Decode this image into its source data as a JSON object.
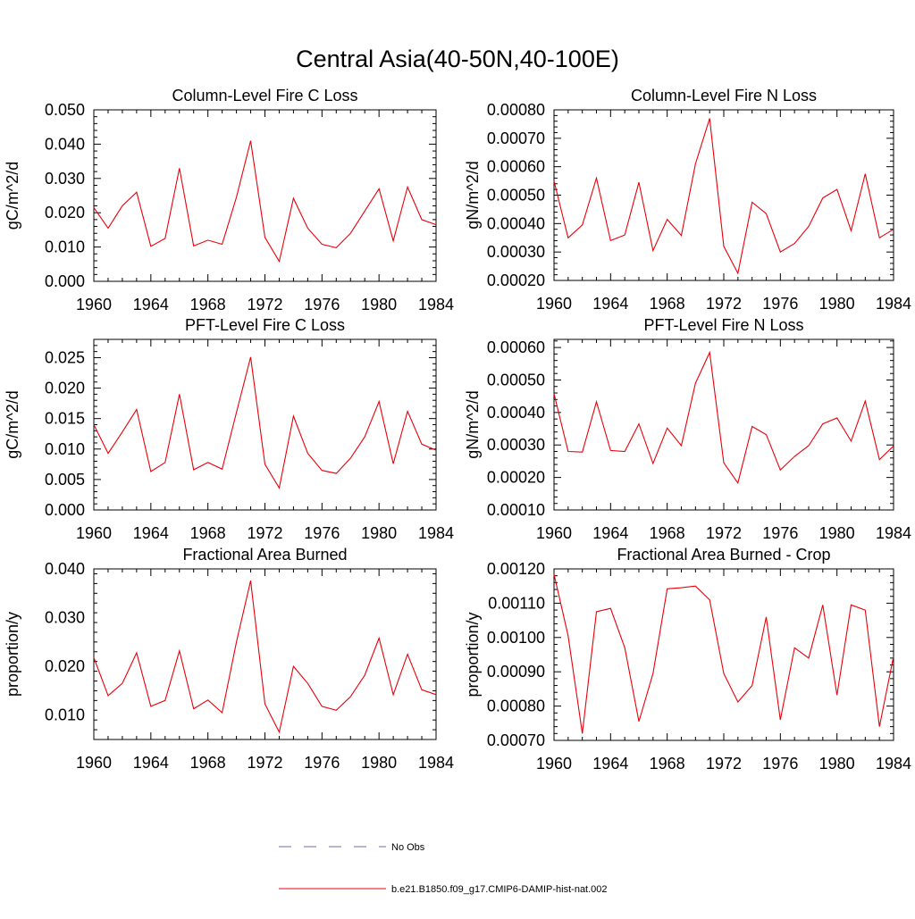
{
  "title": "Central Asia(40-50N,40-100E)",
  "colors": {
    "model_line": "#e8000b",
    "obs_line": "#6b6bb5",
    "axis": "#000000"
  },
  "x_ticks": [
    "1960",
    "1964",
    "1968",
    "1972",
    "1976",
    "1980",
    "1984"
  ],
  "legend": {
    "obs_label": "No Obs",
    "model_label": "b.e21.B1850.f09_g17.CMIP6-DAMIP-hist-nat.002"
  },
  "chart_data": [
    {
      "type": "line",
      "title": "Column-Level Fire C Loss",
      "ylabel": "gC/m^2/d",
      "xlim": [
        1960,
        1984
      ],
      "ylim": [
        0.0,
        0.05
      ],
      "yticks": [
        "0.000",
        "0.010",
        "0.020",
        "0.030",
        "0.040",
        "0.050"
      ],
      "x": [
        1960,
        1961,
        1962,
        1963,
        1964,
        1965,
        1966,
        1967,
        1968,
        1969,
        1970,
        1971,
        1972,
        1973,
        1974,
        1975,
        1976,
        1977,
        1978,
        1979,
        1980,
        1981,
        1982,
        1983,
        1984
      ],
      "values": [
        0.0215,
        0.0155,
        0.022,
        0.026,
        0.0102,
        0.0125,
        0.033,
        0.0103,
        0.012,
        0.0108,
        0.0245,
        0.041,
        0.0128,
        0.0058,
        0.0242,
        0.0155,
        0.0108,
        0.0098,
        0.014,
        0.0205,
        0.027,
        0.0118,
        0.0275,
        0.018,
        0.0165
      ]
    },
    {
      "type": "line",
      "title": "Column-Level Fire N Loss",
      "ylabel": "gN/m^2/d",
      "xlim": [
        1960,
        1984
      ],
      "ylim": [
        0.0002,
        0.0008
      ],
      "yticks": [
        "0.00020",
        "0.00030",
        "0.00040",
        "0.00050",
        "0.00060",
        "0.00070",
        "0.00080"
      ],
      "x": [
        1960,
        1961,
        1962,
        1963,
        1964,
        1965,
        1966,
        1967,
        1968,
        1969,
        1970,
        1971,
        1972,
        1973,
        1974,
        1975,
        1976,
        1977,
        1978,
        1979,
        1980,
        1981,
        1982,
        1983,
        1984
      ],
      "values": [
        0.00055,
        0.00035,
        0.000395,
        0.00056,
        0.00034,
        0.00036,
        0.000545,
        0.000305,
        0.000415,
        0.000358,
        0.00061,
        0.00077,
        0.00032,
        0.000225,
        0.000475,
        0.000435,
        0.0003,
        0.00033,
        0.00039,
        0.00049,
        0.00052,
        0.000375,
        0.000575,
        0.00035,
        0.00038
      ]
    },
    {
      "type": "line",
      "title": "PFT-Level Fire C Loss",
      "ylabel": "gC/m^2/d",
      "xlim": [
        1960,
        1984
      ],
      "ylim": [
        0.0,
        0.028
      ],
      "yticks": [
        "0.000",
        "0.005",
        "0.010",
        "0.015",
        "0.020",
        "0.025"
      ],
      "x": [
        1960,
        1961,
        1962,
        1963,
        1964,
        1965,
        1966,
        1967,
        1968,
        1969,
        1970,
        1971,
        1972,
        1973,
        1974,
        1975,
        1976,
        1977,
        1978,
        1979,
        1980,
        1981,
        1982,
        1983,
        1984
      ],
      "values": [
        0.014,
        0.0093,
        0.0128,
        0.0165,
        0.0063,
        0.0078,
        0.019,
        0.0066,
        0.0078,
        0.0067,
        0.016,
        0.0251,
        0.0075,
        0.0036,
        0.0154,
        0.0093,
        0.0065,
        0.006,
        0.0085,
        0.012,
        0.0178,
        0.0076,
        0.0162,
        0.0108,
        0.0098
      ]
    },
    {
      "type": "line",
      "title": "PFT-Level Fire N Loss",
      "ylabel": "gN/m^2/d",
      "xlim": [
        1960,
        1984
      ],
      "ylim": [
        0.0001,
        0.000625
      ],
      "yticks": [
        "0.00010",
        "0.00020",
        "0.00030",
        "0.00040",
        "0.00050",
        "0.00060"
      ],
      "x": [
        1960,
        1961,
        1962,
        1963,
        1964,
        1965,
        1966,
        1967,
        1968,
        1969,
        1970,
        1971,
        1972,
        1973,
        1974,
        1975,
        1976,
        1977,
        1978,
        1979,
        1980,
        1981,
        1982,
        1983,
        1984
      ],
      "values": [
        0.000458,
        0.00028,
        0.000278,
        0.000433,
        0.000283,
        0.00028,
        0.000365,
        0.000243,
        0.000352,
        0.000298,
        0.00049,
        0.000585,
        0.000245,
        0.000183,
        0.000357,
        0.000332,
        0.000223,
        0.000265,
        0.000298,
        0.000365,
        0.000383,
        0.000312,
        0.000435,
        0.000255,
        0.000297
      ]
    },
    {
      "type": "line",
      "title": "Fractional Area Burned",
      "ylabel": "proportion/y",
      "xlim": [
        1960,
        1984
      ],
      "ylim": [
        0.005,
        0.04
      ],
      "yticks": [
        "",
        "0.010",
        "0.020",
        "0.030",
        "0.040"
      ],
      "ytick_values": [
        0.005,
        0.01,
        0.02,
        0.03,
        0.04
      ],
      "x": [
        1960,
        1961,
        1962,
        1963,
        1964,
        1965,
        1966,
        1967,
        1968,
        1969,
        1970,
        1971,
        1972,
        1973,
        1974,
        1975,
        1976,
        1977,
        1978,
        1979,
        1980,
        1981,
        1982,
        1983,
        1984
      ],
      "values": [
        0.0218,
        0.014,
        0.0165,
        0.0228,
        0.0118,
        0.013,
        0.0232,
        0.0113,
        0.0131,
        0.0105,
        0.025,
        0.0376,
        0.0123,
        0.0065,
        0.02,
        0.0165,
        0.0118,
        0.011,
        0.0138,
        0.0182,
        0.0258,
        0.0142,
        0.0225,
        0.0152,
        0.0142
      ]
    },
    {
      "type": "line",
      "title": "Fractional Area Burned - Crop",
      "ylabel": "proportion/y",
      "xlim": [
        1960,
        1984
      ],
      "ylim": [
        0.0007,
        0.0012
      ],
      "yticks": [
        "0.00070",
        "0.00080",
        "0.00090",
        "0.00100",
        "0.00110",
        "0.00120"
      ],
      "x": [
        1960,
        1961,
        1962,
        1963,
        1964,
        1965,
        1966,
        1967,
        1968,
        1969,
        1970,
        1971,
        1972,
        1973,
        1974,
        1975,
        1976,
        1977,
        1978,
        1979,
        1980,
        1981,
        1982,
        1983,
        1984
      ],
      "values": [
        0.001185,
        0.001005,
        0.00072,
        0.001075,
        0.001085,
        0.00097,
        0.000755,
        0.000895,
        0.001142,
        0.001145,
        0.00115,
        0.00111,
        0.000895,
        0.000812,
        0.00086,
        0.00106,
        0.00076,
        0.00097,
        0.00094,
        0.001095,
        0.000832,
        0.001095,
        0.00108,
        0.00074,
        0.000945
      ]
    }
  ]
}
